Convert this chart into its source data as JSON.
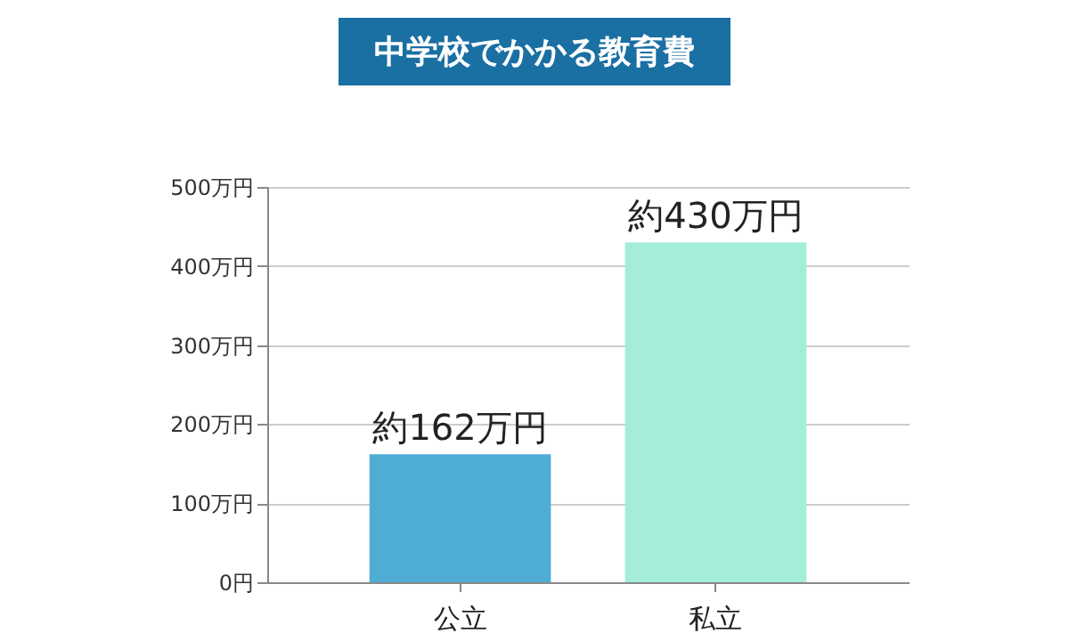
{
  "chart_data": {
    "type": "bar",
    "title": "中学校でかかる教育費",
    "categories": [
      "公立",
      "私立"
    ],
    "values": [
      162,
      430
    ],
    "colors": [
      "#4eacd5",
      "#a4edd9"
    ],
    "value_labels": [
      "約162万円",
      "約430万円"
    ],
    "ylim": [
      0,
      500
    ],
    "yticks": [
      {
        "value": 0,
        "label": "0円"
      },
      {
        "value": 100,
        "label": "100万円"
      },
      {
        "value": 200,
        "label": "200万円"
      },
      {
        "value": 300,
        "label": "300万円"
      },
      {
        "value": 400,
        "label": "400万円"
      },
      {
        "value": 500,
        "label": "500万円"
      }
    ],
    "grid": "y"
  }
}
